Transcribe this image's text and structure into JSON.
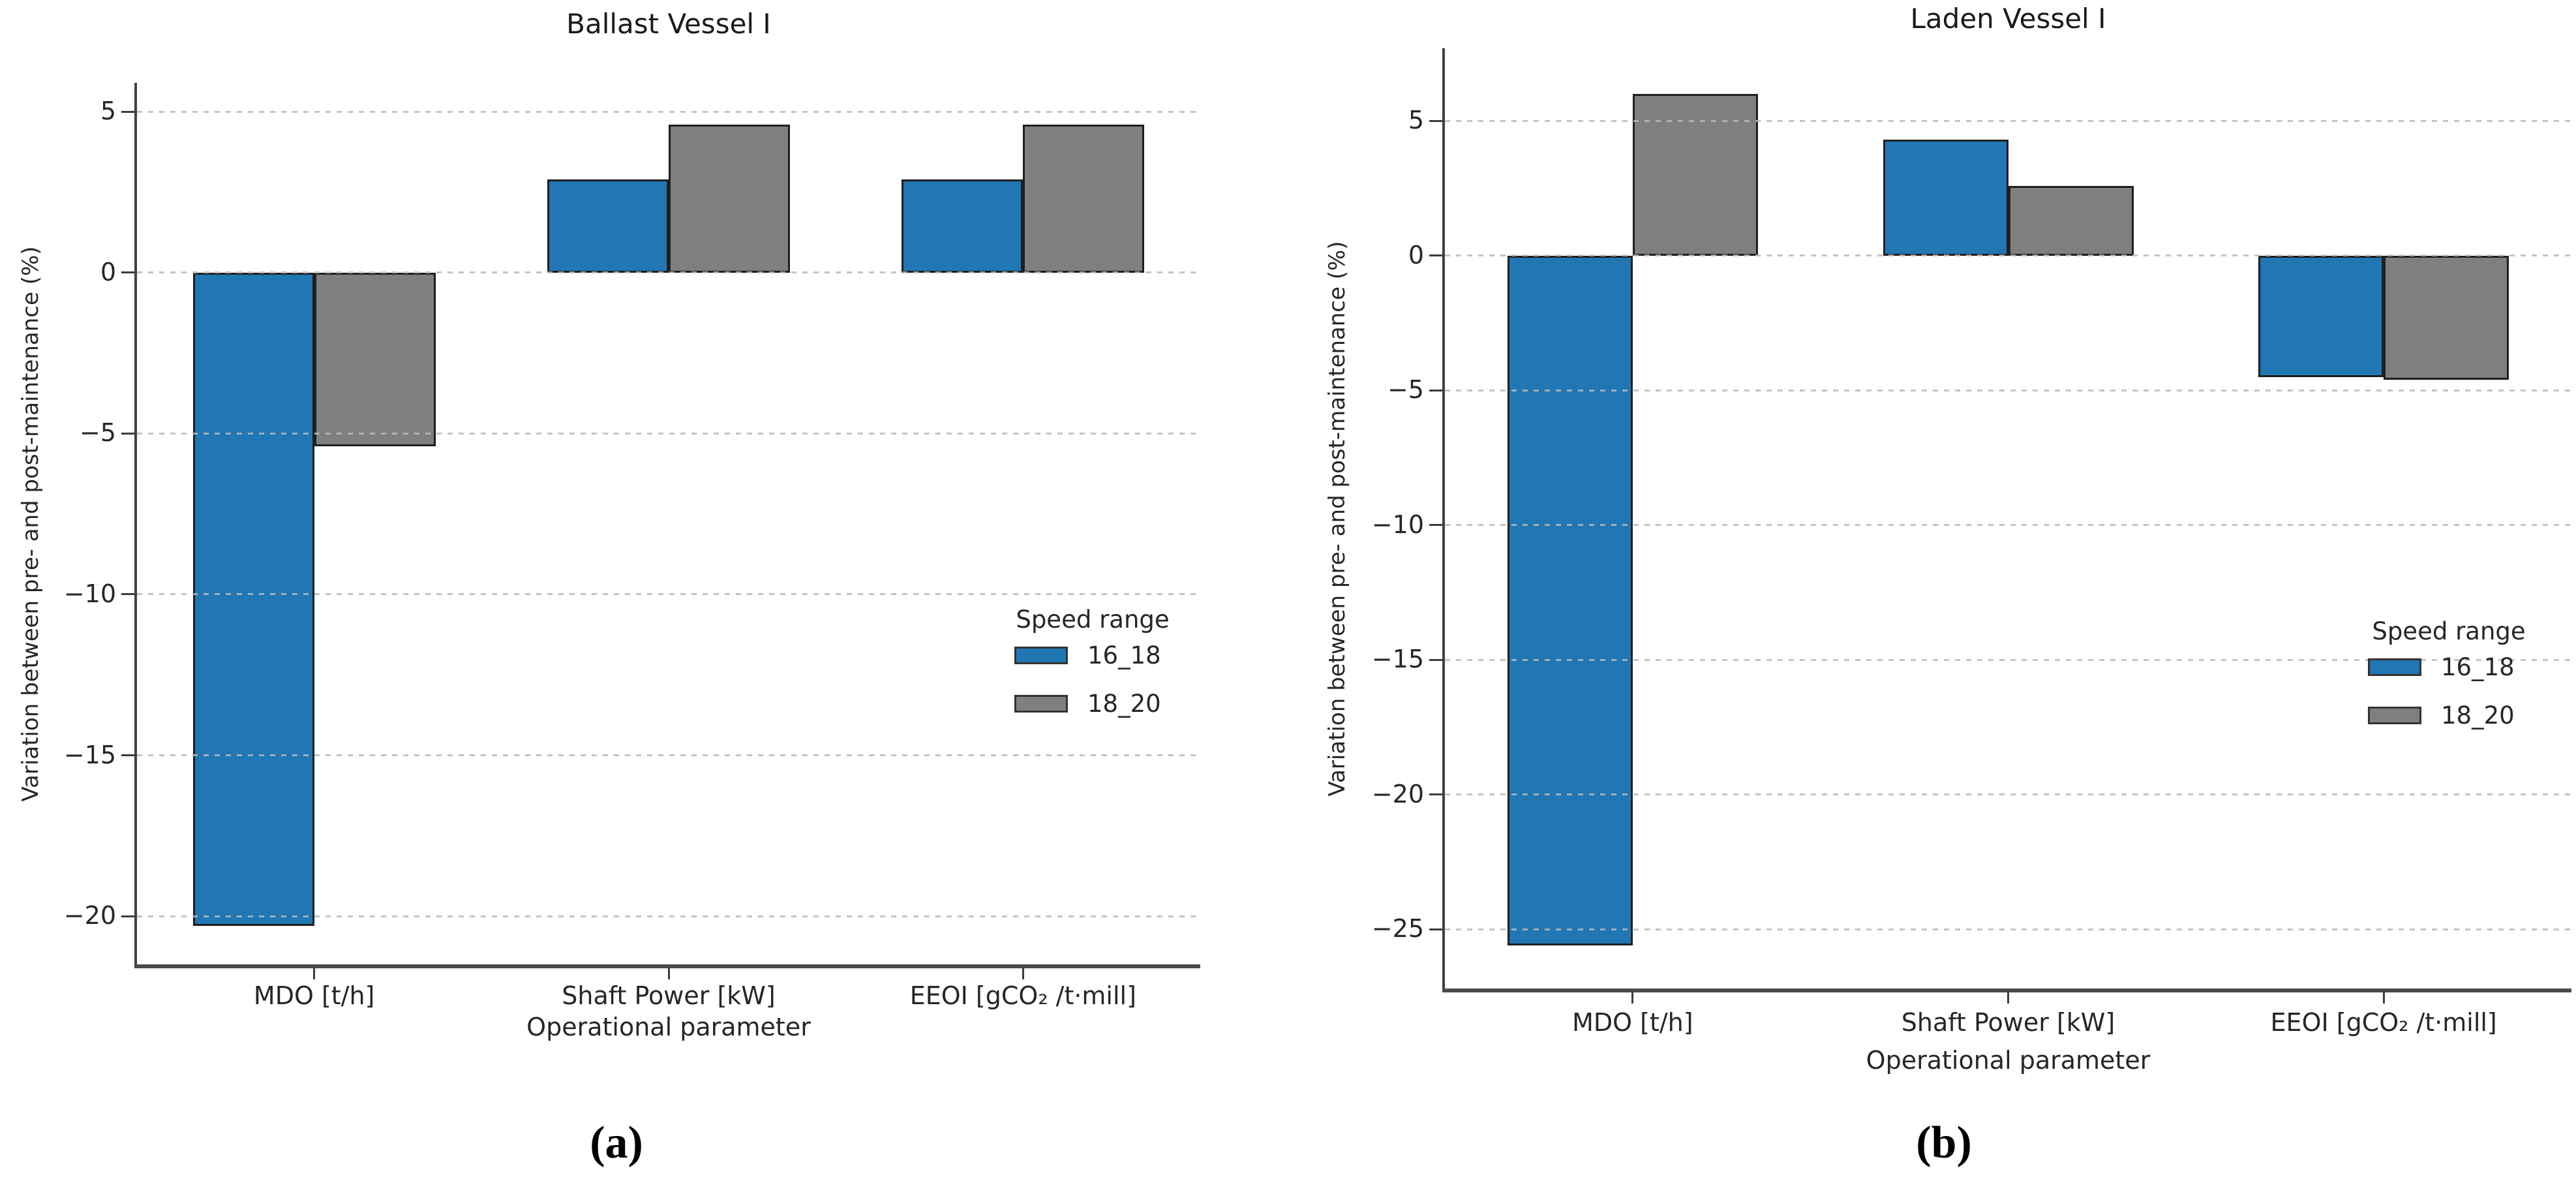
{
  "figure": {
    "captions": {
      "a": "(a)",
      "b": "(b)"
    }
  },
  "colors": {
    "series_blue": "#2077b4",
    "series_gray": "#7f7f7f",
    "bar_edge": "#1f1f1f",
    "gridline": "#b9b9b9",
    "spine": "#414141",
    "text": "#262626"
  },
  "chart_data": [
    {
      "type": "bar",
      "title": "Ballast Vessel I",
      "xlabel": "Operational parameter",
      "ylabel": "Variation between pre- and post-maintenance (%)",
      "categories": [
        "MDO [t/h]",
        "Shaft Power [kW]",
        "EEOI [gCO₂ /t·mill]"
      ],
      "legend": {
        "title": "Speed range",
        "position": "center-right"
      },
      "series": [
        {
          "name": "16_18",
          "color": "#2077b4",
          "values": [
            -20.3,
            2.9,
            2.9
          ]
        },
        {
          "name": "18_20",
          "color": "#7f7f7f",
          "values": [
            -5.4,
            4.6,
            4.6
          ]
        }
      ],
      "ylim": [
        -21.5,
        5.9
      ],
      "yticks": [
        5,
        0,
        -5,
        -10,
        -15,
        -20
      ],
      "ytick_labels": [
        "5",
        "0",
        "−5",
        "−10",
        "−15",
        "−20"
      ],
      "grid": "horizontal-dashed-over-bars"
    },
    {
      "type": "bar",
      "title": "Laden Vessel I",
      "xlabel": "Operational parameter",
      "ylabel": "Variation between pre- and post-maintenance (%)",
      "categories": [
        "MDO [t/h]",
        "Shaft Power [kW]",
        "EEOI [gCO₂ /t·mill]"
      ],
      "legend": {
        "title": "Speed range",
        "position": "center-right"
      },
      "series": [
        {
          "name": "16_18",
          "color": "#2077b4",
          "values": [
            -25.6,
            4.3,
            -4.5
          ]
        },
        {
          "name": "18_20",
          "color": "#7f7f7f",
          "values": [
            6.0,
            2.6,
            -4.6
          ]
        }
      ],
      "ylim": [
        -27.2,
        7.7
      ],
      "yticks": [
        5,
        0,
        -5,
        -10,
        -15,
        -20,
        -25
      ],
      "ytick_labels": [
        "5",
        "0",
        "−5",
        "−10",
        "−15",
        "−20",
        "−25"
      ],
      "grid": "horizontal-dashed-over-bars"
    }
  ]
}
